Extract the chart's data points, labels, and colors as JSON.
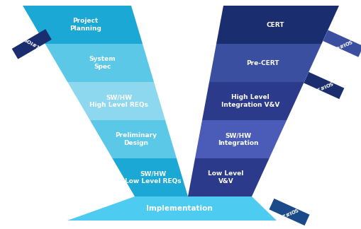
{
  "background_color": "#ffffff",
  "figsize": [
    5.1,
    3.24
  ],
  "dpi": 100,
  "left_arm": {
    "bands": [
      {
        "label": "Project\nPlanning",
        "color": "#1ba8d5"
      },
      {
        "label": "System\nSpec",
        "color": "#5bc8e8"
      },
      {
        "label": "SW/HW\nHigh Level REQs",
        "color": "#8ed8ef"
      },
      {
        "label": "Preliminary\nDesign",
        "color": "#5bc8e8"
      },
      {
        "label": "SW/HW\nLow Level REQs",
        "color": "#1ba8d5"
      }
    ]
  },
  "right_arm": {
    "bands": [
      {
        "label": "CERT",
        "color": "#1a2d6e"
      },
      {
        "label": "Pre-CERT",
        "color": "#3a4fa0"
      },
      {
        "label": "High Level\nIntegration V&V",
        "color": "#2b3a8a"
      },
      {
        "label": "SW/HW\nIntegration",
        "color": "#4a5cb8"
      },
      {
        "label": "Low Level\nV&V",
        "color": "#2b3a8a"
      }
    ]
  },
  "bottom_band": {
    "label": "Implementation",
    "color": "#4dcbf0"
  },
  "soi1": {
    "text": "SOI#1",
    "color": "#1a2d6e"
  },
  "soi2": {
    "text": "SOI#2",
    "color": "#1a4a8a"
  },
  "soi3": {
    "text": "SOI#3",
    "color": "#1a2d6e"
  },
  "soi4": {
    "text": "SOI#4",
    "color": "#3a4fa0"
  },
  "text_color": "#ffffff",
  "font_size": 6.5
}
